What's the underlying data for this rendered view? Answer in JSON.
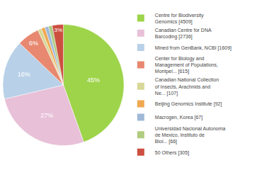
{
  "chart_data": {
    "type": "pie",
    "categories": [
      "Centre for Biodiversity\nGenomics [4509]",
      "Canadian Centre for DNA\nBarcoding [2736]",
      "Mined from GenBank, NCBI [1609]",
      "Center for Biology and\nManagement of Populations,\nMontpel... [615]",
      "Canadian National Collection\nof Insects, Arachnids and\nNe... [107]",
      "Beijing Genomics Institute [92]",
      "Macrogen, Korea [67]",
      "Universidad Nacional Autonoma\nde Mexico, Instituto de\nBiol... [66]",
      "50 Others [305]"
    ],
    "values": [
      45,
      27,
      16,
      6,
      1,
      1,
      1,
      1,
      3
    ],
    "value_labels": [
      "45%",
      "27%",
      "16%",
      "6%",
      null,
      null,
      null,
      null,
      "3%"
    ],
    "colors": [
      "#9dd44a",
      "#e8c0d8",
      "#b8d0e8",
      "#e88870",
      "#d8d898",
      "#f0a850",
      "#a0b8d8",
      "#b0cc80",
      "#cc5040"
    ],
    "data_labels": true,
    "legend": "right"
  }
}
